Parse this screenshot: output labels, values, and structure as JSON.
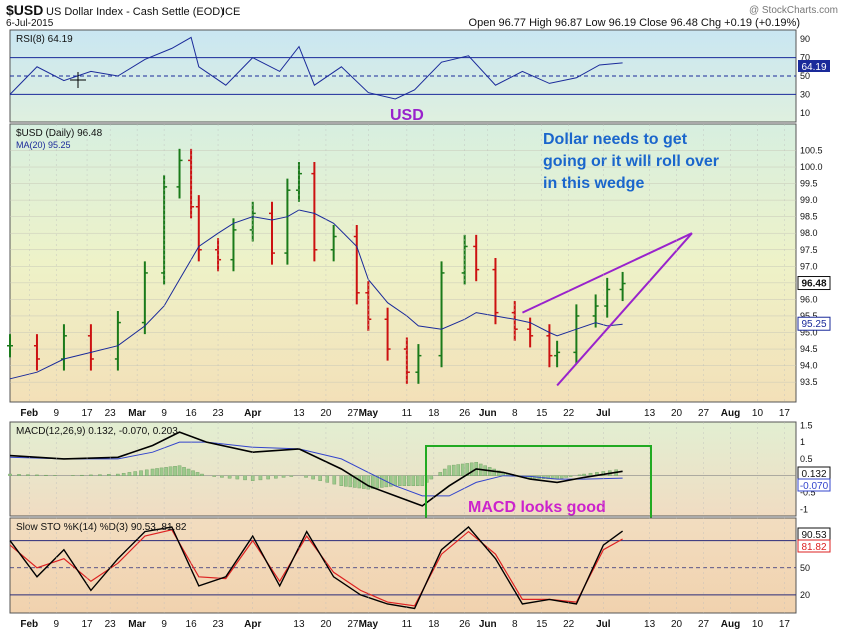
{
  "header": {
    "ticker": "$USD",
    "title": "US Dollar Index - Cash Settle (EOD)",
    "exchange": "ICE",
    "watermark": "@ StockCharts.com",
    "date": "6-Jul-2015",
    "ohlc_text": "Open 96.77  High 96.87  Low 96.19  Close 96.48  Chg +0.19 (+0.19%)"
  },
  "annotations": {
    "usd_label": "USD",
    "dollar_note": [
      "Dollar needs to get",
      "going or it will roll over",
      "in this wedge"
    ],
    "macd_note": "MACD looks good"
  },
  "colors": {
    "price_bar": "#1a7a1a",
    "price_bar_down": "#cc1111",
    "ma": "#1a2a9a",
    "annotation_blue": "#1a66cc",
    "annotation_purple": "#9922cc",
    "annotation_magenta": "#cc22cc",
    "box_green": "#22aa22",
    "stoch_k": "#000000",
    "stoch_d": "#dd2222"
  },
  "chart_data": [
    {
      "type": "line",
      "panel": "rsi",
      "legend": "RSI(8) 64.19",
      "last_value_label": "64.19",
      "ylim": [
        0,
        100
      ],
      "y_ticks": [
        10,
        30,
        50,
        70,
        90
      ],
      "reference_lines": [
        30,
        70
      ],
      "x": [
        "2015-01-28",
        "2015-02-04",
        "2015-02-11",
        "2015-02-18",
        "2015-02-25",
        "2015-03-04",
        "2015-03-11",
        "2015-03-16",
        "2015-03-18",
        "2015-03-25",
        "2015-04-01",
        "2015-04-08",
        "2015-04-13",
        "2015-04-17",
        "2015-04-24",
        "2015-05-01",
        "2015-05-08",
        "2015-05-13",
        "2015-05-20",
        "2015-05-27",
        "2015-06-03",
        "2015-06-10",
        "2015-06-17",
        "2015-06-24",
        "2015-06-30",
        "2015-07-06"
      ],
      "values": [
        30,
        60,
        45,
        55,
        50,
        68,
        80,
        92,
        60,
        40,
        70,
        55,
        82,
        40,
        60,
        32,
        25,
        35,
        65,
        72,
        40,
        55,
        42,
        48,
        62,
        64.19
      ]
    },
    {
      "type": "bar",
      "panel": "price",
      "legend": [
        "$USD (Daily) 96.48",
        "MA(20) 95.25"
      ],
      "last_value_label": "96.48",
      "ma_value_label": "95.25",
      "ylim": [
        92.9,
        101.3
      ],
      "y_ticks": [
        93.5,
        94.0,
        94.5,
        95.0,
        95.5,
        96.0,
        96.5,
        97.0,
        97.5,
        98.0,
        98.5,
        99.0,
        99.5,
        100.0,
        100.5
      ],
      "x": [
        "2015-01-28",
        "2015-02-04",
        "2015-02-11",
        "2015-02-18",
        "2015-02-25",
        "2015-03-04",
        "2015-03-09",
        "2015-03-13",
        "2015-03-16",
        "2015-03-18",
        "2015-03-23",
        "2015-03-27",
        "2015-04-01",
        "2015-04-06",
        "2015-04-10",
        "2015-04-13",
        "2015-04-17",
        "2015-04-22",
        "2015-04-28",
        "2015-05-01",
        "2015-05-06",
        "2015-05-11",
        "2015-05-14",
        "2015-05-20",
        "2015-05-26",
        "2015-05-29",
        "2015-06-03",
        "2015-06-08",
        "2015-06-12",
        "2015-06-17",
        "2015-06-19",
        "2015-06-24",
        "2015-06-29",
        "2015-07-02",
        "2015-07-06"
      ],
      "close": [
        94.6,
        94.2,
        94.9,
        94.2,
        95.3,
        96.8,
        99.4,
        100.2,
        98.8,
        97.5,
        97.2,
        98.1,
        98.6,
        97.4,
        99.3,
        99.8,
        97.5,
        97.9,
        96.2,
        95.4,
        94.5,
        93.8,
        94.3,
        96.8,
        97.6,
        96.9,
        95.6,
        95.1,
        94.9,
        94.3,
        94.4,
        95.5,
        95.8,
        96.3,
        96.48
      ],
      "ma20": [
        93.6,
        93.8,
        94.2,
        94.4,
        94.6,
        95.2,
        95.8,
        96.6,
        97.2,
        97.6,
        98.0,
        98.3,
        98.5,
        98.4,
        98.5,
        98.7,
        98.6,
        98.3,
        97.6,
        96.6,
        95.9,
        95.5,
        95.2,
        95.1,
        95.4,
        95.6,
        95.5,
        95.4,
        95.3,
        95.0,
        94.9,
        95.1,
        95.3,
        95.2,
        95.25
      ],
      "wedge_lines": [
        {
          "from": [
            "2015-06-10",
            95.6
          ],
          "to": [
            "2015-07-24",
            98.0
          ]
        },
        {
          "from": [
            "2015-06-19",
            93.4
          ],
          "to": [
            "2015-07-24",
            98.0
          ]
        }
      ]
    },
    {
      "type": "line",
      "panel": "macd",
      "legend": "MACD(12,26,9) 0.132, -0.070, 0.203",
      "last_value_labels": [
        "0.132",
        "-0.070"
      ],
      "ylim": [
        -1.2,
        1.6
      ],
      "y_ticks": [
        -1.0,
        -0.5,
        0.0,
        0.5,
        1.0,
        1.5
      ],
      "x": [
        "2015-01-28",
        "2015-02-11",
        "2015-02-25",
        "2015-03-06",
        "2015-03-13",
        "2015-03-20",
        "2015-04-01",
        "2015-04-13",
        "2015-04-24",
        "2015-05-01",
        "2015-05-08",
        "2015-05-15",
        "2015-05-22",
        "2015-05-29",
        "2015-06-05",
        "2015-06-12",
        "2015-06-19",
        "2015-06-26",
        "2015-07-06"
      ],
      "series": [
        {
          "name": "MACD",
          "values": [
            0.6,
            0.5,
            0.55,
            0.9,
            1.3,
            1.0,
            0.7,
            0.8,
            0.2,
            -0.3,
            -0.6,
            -0.9,
            -0.3,
            0.2,
            0.1,
            -0.1,
            -0.2,
            -0.05,
            0.132
          ]
        },
        {
          "name": "Signal",
          "values": [
            0.55,
            0.5,
            0.5,
            0.7,
            1.0,
            1.0,
            0.85,
            0.8,
            0.5,
            0.1,
            -0.3,
            -0.6,
            -0.6,
            -0.2,
            0.0,
            -0.02,
            -0.1,
            -0.1,
            -0.07
          ]
        },
        {
          "name": "Histogram",
          "values": [
            0.05,
            0.0,
            0.05,
            0.2,
            0.3,
            0.0,
            -0.15,
            0.0,
            -0.3,
            -0.4,
            -0.3,
            -0.3,
            0.3,
            0.4,
            0.1,
            -0.08,
            -0.1,
            0.05,
            0.203
          ]
        }
      ]
    },
    {
      "type": "line",
      "panel": "stochastic",
      "legend": "Slow STO %K(14) %D(3) 90.53, 81.82",
      "last_value_labels": [
        "90.53",
        "81.82"
      ],
      "ylim": [
        0,
        105
      ],
      "y_ticks": [
        20,
        50,
        80
      ],
      "reference_lines": [
        20,
        50,
        80
      ],
      "x": [
        "2015-01-28",
        "2015-02-04",
        "2015-02-11",
        "2015-02-18",
        "2015-02-25",
        "2015-03-04",
        "2015-03-11",
        "2015-03-18",
        "2015-03-25",
        "2015-04-01",
        "2015-04-08",
        "2015-04-15",
        "2015-04-22",
        "2015-04-29",
        "2015-05-06",
        "2015-05-13",
        "2015-05-20",
        "2015-05-27",
        "2015-06-03",
        "2015-06-10",
        "2015-06-17",
        "2015-06-24",
        "2015-07-01",
        "2015-07-06"
      ],
      "series": [
        {
          "name": "%K",
          "values": [
            80,
            40,
            70,
            25,
            60,
            90,
            95,
            30,
            40,
            85,
            30,
            90,
            40,
            20,
            10,
            5,
            70,
            95,
            60,
            10,
            15,
            10,
            75,
            90.53
          ]
        },
        {
          "name": "%D",
          "values": [
            75,
            50,
            60,
            35,
            55,
            85,
            92,
            40,
            38,
            80,
            35,
            85,
            45,
            25,
            12,
            8,
            65,
            90,
            65,
            15,
            15,
            12,
            70,
            81.82
          ]
        }
      ]
    }
  ],
  "x_axis": {
    "labels": [
      "Feb",
      "9",
      "17",
      "23",
      "Mar",
      "9",
      "16",
      "23",
      "Apr",
      "13",
      "20",
      "27",
      "May",
      "11",
      "18",
      "26",
      "Jun",
      "8",
      "15",
      "22",
      "Jul",
      "13",
      "20",
      "27",
      "Aug",
      "10",
      "17"
    ]
  }
}
